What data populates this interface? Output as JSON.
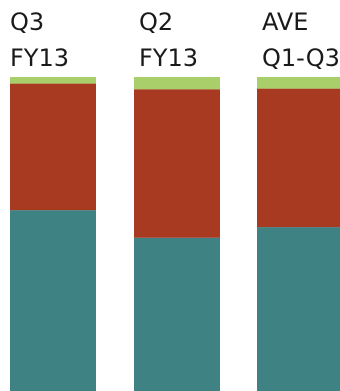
{
  "chart_data": {
    "type": "bar",
    "stacked": true,
    "categories": [
      [
        "Q3",
        "FY13"
      ],
      [
        "Q2",
        "FY13"
      ],
      [
        "AVE",
        "Q1-Q3"
      ]
    ],
    "series": [
      {
        "values": [
          0.576,
          0.488,
          0.522
        ],
        "color": "#3f8284"
      },
      {
        "values": [
          0.403,
          0.473,
          0.441
        ],
        "color": "#a83a22"
      },
      {
        "values": [
          0.021,
          0.039,
          0.037
        ],
        "color": "#a9cf6a"
      }
    ],
    "ylim": [
      0,
      1
    ],
    "grid": false,
    "legend": "none"
  }
}
